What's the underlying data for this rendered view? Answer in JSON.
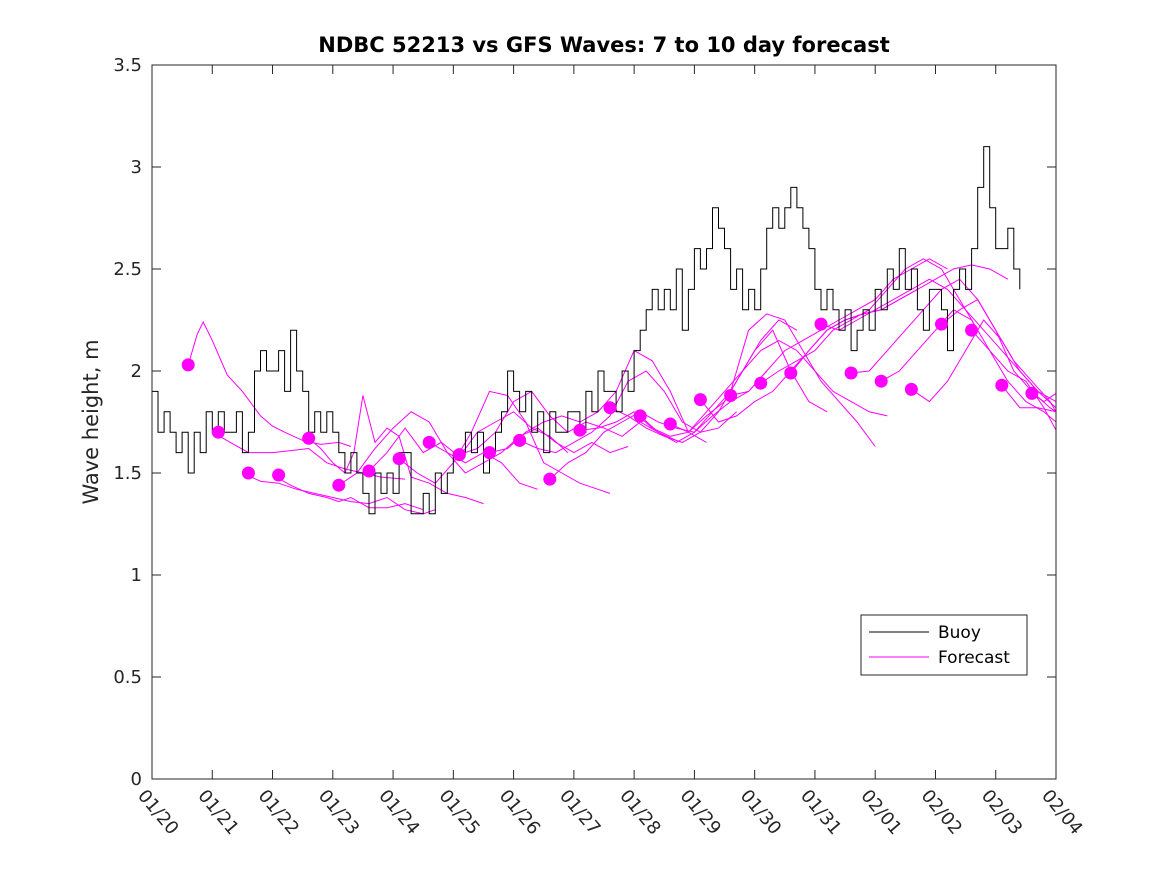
{
  "chart_data": {
    "type": "line",
    "title": "NDBC 52213 vs GFS Waves: 7 to 10 day forecast",
    "xlabel": "",
    "ylabel": "Wave height, m",
    "ylim": [
      0,
      3.5
    ],
    "xlim": [
      0,
      15
    ],
    "yticks": [
      0,
      0.5,
      1,
      1.5,
      2,
      2.5,
      3,
      3.5
    ],
    "ytick_labels": [
      "0",
      "0.5",
      "1",
      "1.5",
      "2",
      "2.5",
      "3",
      "3.5"
    ],
    "xticks": [
      0,
      1,
      2,
      3,
      4,
      5,
      6,
      7,
      8,
      9,
      10,
      11,
      12,
      13,
      14,
      15
    ],
    "xtick_labels": [
      "01/20",
      "01/21",
      "01/22",
      "01/23",
      "01/24",
      "01/25",
      "01/26",
      "01/27",
      "01/28",
      "01/29",
      "01/30",
      "01/31",
      "02/01",
      "02/02",
      "02/03",
      "02/04"
    ],
    "legend": {
      "placement": "bottom-right",
      "entries": [
        "Buoy",
        "Forecast"
      ]
    },
    "colors": {
      "buoy": "#000000",
      "forecast": "#ff00ff"
    },
    "buoy": {
      "name": "Buoy",
      "x": [
        0,
        0.1,
        0.2,
        0.3,
        0.4,
        0.5,
        0.6,
        0.7,
        0.8,
        0.9,
        1.0,
        1.1,
        1.2,
        1.3,
        1.4,
        1.5,
        1.6,
        1.7,
        1.8,
        1.9,
        2.0,
        2.1,
        2.2,
        2.3,
        2.4,
        2.5,
        2.6,
        2.7,
        2.8,
        2.9,
        3.0,
        3.1,
        3.2,
        3.3,
        3.4,
        3.5,
        3.6,
        3.7,
        3.8,
        3.9,
        4.0,
        4.1,
        4.2,
        4.3,
        4.4,
        4.5,
        4.6,
        4.7,
        4.8,
        4.9,
        5.0,
        5.1,
        5.2,
        5.3,
        5.4,
        5.5,
        5.6,
        5.7,
        5.8,
        5.9,
        6.0,
        6.1,
        6.2,
        6.3,
        6.4,
        6.5,
        6.6,
        6.7,
        6.8,
        6.9,
        7.0,
        7.1,
        7.2,
        7.3,
        7.4,
        7.5,
        7.6,
        7.7,
        7.8,
        7.9,
        8.0,
        8.1,
        8.2,
        8.3,
        8.4,
        8.5,
        8.6,
        8.7,
        8.8,
        8.9,
        9.0,
        9.1,
        9.2,
        9.3,
        9.4,
        9.5,
        9.6,
        9.7,
        9.8,
        9.9,
        10.0,
        10.1,
        10.2,
        10.3,
        10.4,
        10.5,
        10.6,
        10.7,
        10.8,
        10.9,
        11.0,
        11.1,
        11.2,
        11.3,
        11.4,
        11.5,
        11.6,
        11.7,
        11.8,
        11.9,
        12.0,
        12.1,
        12.2,
        12.3,
        12.4,
        12.5,
        12.6,
        12.7,
        12.8,
        12.9,
        13.0,
        13.1,
        13.2,
        13.3,
        13.4,
        13.5,
        13.6,
        13.7,
        13.8,
        13.9,
        14.0,
        14.1,
        14.2,
        14.3,
        14.4
      ],
      "values": [
        1.9,
        1.7,
        1.8,
        1.7,
        1.6,
        1.7,
        1.5,
        1.7,
        1.6,
        1.8,
        1.7,
        1.8,
        1.7,
        1.7,
        1.8,
        1.6,
        1.7,
        2.0,
        2.1,
        2.0,
        2.0,
        2.1,
        1.9,
        2.2,
        2.0,
        1.9,
        1.7,
        1.8,
        1.7,
        1.8,
        1.7,
        1.6,
        1.5,
        1.6,
        1.5,
        1.4,
        1.3,
        1.5,
        1.4,
        1.5,
        1.4,
        1.6,
        1.6,
        1.3,
        1.3,
        1.4,
        1.3,
        1.5,
        1.4,
        1.5,
        1.6,
        1.6,
        1.7,
        1.6,
        1.7,
        1.5,
        1.6,
        1.7,
        1.8,
        2.0,
        1.9,
        1.8,
        1.9,
        1.7,
        1.8,
        1.6,
        1.8,
        1.7,
        1.7,
        1.8,
        1.8,
        1.7,
        1.9,
        1.8,
        2.0,
        1.9,
        1.9,
        1.8,
        2.0,
        1.9,
        2.1,
        2.2,
        2.3,
        2.4,
        2.3,
        2.4,
        2.3,
        2.5,
        2.2,
        2.4,
        2.6,
        2.5,
        2.6,
        2.8,
        2.7,
        2.6,
        2.4,
        2.5,
        2.3,
        2.4,
        2.3,
        2.5,
        2.7,
        2.8,
        2.7,
        2.8,
        2.9,
        2.8,
        2.7,
        2.6,
        2.4,
        2.3,
        2.4,
        2.3,
        2.2,
        2.3,
        2.1,
        2.2,
        2.3,
        2.2,
        2.4,
        2.3,
        2.5,
        2.4,
        2.6,
        2.4,
        2.5,
        2.3,
        2.2,
        2.4,
        2.4,
        2.3,
        2.1,
        2.4,
        2.5,
        2.4,
        2.6,
        2.9,
        3.1,
        2.8,
        2.6,
        2.6,
        2.7,
        2.5,
        2.4
      ]
    },
    "forecast_series": [
      {
        "name": "Forecast",
        "x": [
          0.6,
          0.75,
          0.85,
          1.0,
          1.25,
          1.5,
          1.8,
          2.0,
          2.2,
          2.5,
          2.8,
          3.1,
          3.3
        ],
        "values": [
          2.03,
          2.18,
          2.24,
          2.15,
          1.98,
          1.9,
          1.78,
          1.73,
          1.7,
          1.66,
          1.64,
          1.65,
          1.63
        ]
      },
      {
        "name": "Forecast",
        "x": [
          1.0,
          1.3,
          1.6,
          2.0,
          2.3,
          2.6,
          2.9,
          3.2,
          3.5,
          3.8,
          4.2
        ],
        "values": [
          1.7,
          1.65,
          1.6,
          1.6,
          1.61,
          1.62,
          1.55,
          1.52,
          1.5,
          1.48,
          1.47
        ]
      },
      {
        "name": "Forecast",
        "x": [
          1.5,
          1.8,
          2.1,
          2.4,
          2.7,
          3.0,
          3.3,
          3.6,
          3.9,
          4.2,
          4.5,
          4.7
        ],
        "values": [
          1.5,
          1.46,
          1.45,
          1.42,
          1.4,
          1.38,
          1.36,
          1.35,
          1.38,
          1.32,
          1.3,
          1.32
        ]
      },
      {
        "name": "Forecast",
        "x": [
          2.0,
          2.3,
          2.6,
          2.9,
          3.1,
          3.3,
          3.6,
          3.9,
          4.2,
          4.5
        ],
        "values": [
          1.49,
          1.44,
          1.4,
          1.38,
          1.36,
          1.38,
          1.33,
          1.33,
          1.35,
          1.32
        ]
      },
      {
        "name": "Forecast",
        "x": [
          2.6,
          2.8,
          3.0,
          3.2,
          3.35,
          3.5,
          3.7,
          3.9,
          4.1,
          4.3,
          4.6,
          4.9,
          5.2,
          5.5
        ],
        "values": [
          1.67,
          1.62,
          1.55,
          1.5,
          1.6,
          1.88,
          1.65,
          1.72,
          1.68,
          1.48,
          1.45,
          1.4,
          1.38,
          1.35
        ]
      },
      {
        "name": "Forecast",
        "x": [
          3.1,
          3.4,
          3.7,
          4.0,
          4.3,
          4.6,
          4.9,
          5.2,
          5.5,
          5.8,
          6.1,
          6.4
        ],
        "values": [
          1.44,
          1.5,
          1.62,
          1.72,
          1.8,
          1.75,
          1.6,
          1.55,
          1.6,
          1.55,
          1.45,
          1.42
        ]
      },
      {
        "name": "Forecast",
        "x": [
          3.6,
          3.9,
          4.2,
          4.5,
          4.8,
          5.1,
          5.4,
          5.7,
          6.0,
          6.3,
          6.6,
          6.9
        ],
        "values": [
          1.51,
          1.6,
          1.72,
          1.6,
          1.65,
          1.58,
          1.7,
          1.75,
          1.8,
          1.72,
          1.68,
          1.6
        ]
      },
      {
        "name": "Forecast",
        "x": [
          4.1,
          4.4,
          4.7,
          5.0,
          5.3,
          5.6,
          5.9,
          6.2,
          6.5,
          6.8,
          7.1,
          7.4,
          7.6
        ],
        "values": [
          1.57,
          1.5,
          1.45,
          1.55,
          1.7,
          1.9,
          1.88,
          1.75,
          1.55,
          1.5,
          1.45,
          1.42,
          1.4
        ]
      },
      {
        "name": "Forecast",
        "x": [
          4.6,
          4.9,
          5.2,
          5.5,
          5.8,
          6.1,
          6.4,
          6.7,
          7.0,
          7.3,
          7.6,
          7.9
        ],
        "values": [
          1.65,
          1.6,
          1.5,
          1.55,
          1.6,
          1.68,
          1.72,
          1.65,
          1.6,
          1.65,
          1.6,
          1.63
        ]
      },
      {
        "name": "Forecast",
        "x": [
          5.1,
          5.4,
          5.7,
          6.0,
          6.3,
          6.6,
          6.9,
          7.2,
          7.5,
          7.8,
          8.1,
          8.4,
          8.7
        ],
        "values": [
          1.59,
          1.62,
          1.7,
          1.85,
          1.9,
          1.78,
          1.7,
          1.75,
          1.72,
          1.68,
          1.75,
          1.7,
          1.66
        ]
      },
      {
        "name": "Forecast",
        "x": [
          5.6,
          5.9,
          6.2,
          6.5,
          6.8,
          7.1,
          7.4,
          7.7,
          8.0,
          8.3,
          8.6,
          8.9,
          9.2
        ],
        "values": [
          1.6,
          1.62,
          1.7,
          1.75,
          1.78,
          1.75,
          1.8,
          1.9,
          2.1,
          2.05,
          1.9,
          1.7,
          1.65
        ]
      },
      {
        "name": "Forecast",
        "x": [
          6.1,
          6.4,
          6.7,
          7.0,
          7.3,
          7.6,
          7.9,
          8.2,
          8.5,
          8.8,
          9.1,
          9.4,
          9.7
        ],
        "values": [
          1.66,
          1.62,
          1.6,
          1.65,
          1.7,
          1.78,
          1.95,
          2.0,
          1.9,
          1.75,
          1.7,
          1.72,
          1.8
        ]
      },
      {
        "name": "Forecast",
        "x": [
          6.6,
          6.9,
          7.2,
          7.5,
          7.8,
          8.1,
          8.4,
          8.7,
          9.0,
          9.3,
          9.6,
          9.9,
          10.2
        ],
        "values": [
          1.47,
          1.55,
          1.6,
          1.7,
          1.75,
          1.8,
          1.75,
          1.72,
          1.7,
          1.78,
          1.85,
          1.9,
          2.0
        ]
      },
      {
        "name": "Forecast",
        "x": [
          7.1,
          7.4,
          7.7,
          8.0,
          8.3,
          8.6,
          8.9,
          9.2,
          9.5,
          9.8,
          10.1,
          10.4,
          10.7
        ],
        "values": [
          1.71,
          1.72,
          1.75,
          1.8,
          1.72,
          1.68,
          1.7,
          1.78,
          1.85,
          2.0,
          2.15,
          2.25,
          2.2
        ]
      },
      {
        "name": "Forecast",
        "x": [
          7.6,
          7.9,
          8.2,
          8.5,
          8.8,
          9.1,
          9.4,
          9.7,
          10.0,
          10.3,
          10.6,
          10.9,
          11.2
        ],
        "values": [
          1.82,
          1.78,
          1.72,
          1.68,
          1.65,
          1.7,
          1.8,
          1.95,
          2.1,
          2.2,
          2.0,
          1.85,
          1.8
        ]
      },
      {
        "name": "Forecast",
        "x": [
          8.1,
          8.4,
          8.7,
          9.0,
          9.3,
          9.6,
          9.9,
          10.2,
          10.5,
          10.8,
          11.1,
          11.4,
          11.7,
          12.0
        ],
        "values": [
          1.78,
          1.7,
          1.65,
          1.7,
          1.8,
          1.9,
          2.2,
          2.28,
          2.25,
          2.1,
          1.95,
          1.85,
          1.75,
          1.63
        ]
      },
      {
        "name": "Forecast",
        "x": [
          8.6,
          8.9,
          9.2,
          9.5,
          9.8,
          10.1,
          10.4,
          10.7,
          11.0,
          11.3,
          11.6,
          11.9,
          12.2
        ],
        "values": [
          1.74,
          1.7,
          1.8,
          1.9,
          2.0,
          2.1,
          2.15,
          2.1,
          2.0,
          1.9,
          1.85,
          1.8,
          1.78
        ]
      },
      {
        "name": "Forecast",
        "x": [
          9.1,
          9.4,
          9.7,
          10.0,
          10.3,
          10.6,
          10.9,
          11.2,
          11.5,
          11.8,
          12.1,
          12.4,
          12.7
        ],
        "values": [
          1.86,
          1.75,
          1.78,
          1.85,
          1.9,
          2.0,
          2.1,
          2.2,
          2.25,
          2.28,
          2.3,
          2.35,
          2.4
        ]
      },
      {
        "name": "Forecast",
        "x": [
          9.6,
          9.9,
          10.2,
          10.5,
          10.8,
          11.1,
          11.4,
          11.7,
          12.0,
          12.3,
          12.6,
          12.9,
          13.2
        ],
        "values": [
          1.88,
          1.9,
          2.0,
          2.1,
          2.15,
          2.2,
          2.25,
          2.3,
          2.35,
          2.45,
          2.5,
          2.55,
          2.5
        ]
      },
      {
        "name": "Forecast",
        "x": [
          10.1,
          10.4,
          10.7,
          11.0,
          11.3,
          11.6,
          11.9,
          12.2,
          12.5,
          12.8,
          13.1,
          13.4,
          13.7
        ],
        "values": [
          1.94,
          2.0,
          2.05,
          2.1,
          2.2,
          2.25,
          2.3,
          2.4,
          2.5,
          2.55,
          2.5,
          2.35,
          2.2
        ]
      },
      {
        "name": "Forecast",
        "x": [
          10.6,
          10.9,
          11.2,
          11.5,
          11.8,
          12.1,
          12.4,
          12.7,
          13.0,
          13.3,
          13.6,
          13.9,
          14.2
        ],
        "values": [
          1.99,
          2.1,
          2.2,
          2.25,
          2.28,
          2.3,
          2.35,
          2.4,
          2.45,
          2.5,
          2.52,
          2.5,
          2.45
        ]
      },
      {
        "name": "Forecast",
        "x": [
          11.1,
          11.4,
          11.7,
          12.0,
          12.3,
          12.6,
          12.9,
          13.2,
          13.5,
          13.8,
          14.1,
          14.4,
          14.7,
          15.0
        ],
        "values": [
          2.23,
          2.2,
          2.25,
          2.3,
          2.35,
          2.4,
          2.45,
          2.4,
          2.3,
          2.2,
          2.1,
          2.0,
          1.9,
          1.85
        ]
      },
      {
        "name": "Forecast",
        "x": [
          11.6,
          11.9,
          12.2,
          12.5,
          12.8,
          13.1,
          13.4,
          13.7,
          14.0,
          14.3,
          14.6,
          14.9,
          15.0
        ],
        "values": [
          1.99,
          2.0,
          2.1,
          2.2,
          2.3,
          2.4,
          2.45,
          2.35,
          2.2,
          2.05,
          1.95,
          1.85,
          1.8
        ]
      },
      {
        "name": "Forecast",
        "x": [
          12.1,
          12.4,
          12.7,
          13.0,
          13.3,
          13.6,
          13.9,
          14.2,
          14.5,
          14.8,
          15.0
        ],
        "values": [
          1.95,
          2.0,
          2.1,
          2.2,
          2.3,
          2.25,
          2.1,
          1.95,
          1.85,
          1.8,
          1.75
        ]
      },
      {
        "name": "Forecast",
        "x": [
          12.6,
          12.9,
          13.2,
          13.5,
          13.8,
          14.1,
          14.4,
          14.7,
          15.0
        ],
        "values": [
          1.91,
          1.85,
          1.95,
          2.1,
          2.25,
          2.15,
          2.0,
          1.9,
          1.82
        ]
      },
      {
        "name": "Forecast",
        "x": [
          13.1,
          13.4,
          13.7,
          14.0,
          14.3,
          14.6,
          14.9,
          15.0
        ],
        "values": [
          2.23,
          2.3,
          2.35,
          2.2,
          2.0,
          1.9,
          1.82,
          1.8
        ]
      },
      {
        "name": "Forecast",
        "x": [
          13.6,
          13.9,
          14.2,
          14.5,
          14.8,
          15.0
        ],
        "values": [
          2.2,
          2.1,
          2.0,
          1.95,
          1.82,
          1.71
        ]
      },
      {
        "name": "Forecast",
        "x": [
          14.1,
          14.4,
          14.7,
          15.0
        ],
        "values": [
          1.93,
          1.82,
          1.82,
          1.8
        ]
      },
      {
        "name": "Forecast",
        "x": [
          14.6,
          14.8,
          15.0
        ],
        "values": [
          1.89,
          1.85,
          1.89
        ]
      }
    ],
    "forecast_points": {
      "x": [
        0.6,
        1.1,
        1.6,
        2.1,
        2.6,
        3.1,
        3.6,
        4.1,
        4.6,
        5.1,
        5.6,
        6.1,
        6.6,
        7.1,
        7.6,
        8.1,
        8.6,
        9.1,
        9.6,
        10.1,
        10.6,
        11.1,
        11.6,
        12.1,
        12.6,
        13.1,
        13.6,
        14.1,
        14.6
      ],
      "values": [
        2.03,
        1.7,
        1.5,
        1.49,
        1.67,
        1.44,
        1.51,
        1.57,
        1.65,
        1.59,
        1.6,
        1.66,
        1.47,
        1.71,
        1.82,
        1.78,
        1.74,
        1.86,
        1.88,
        1.94,
        1.99,
        2.23,
        1.99,
        1.95,
        1.91,
        2.23,
        2.2,
        1.93,
        1.89
      ]
    }
  }
}
